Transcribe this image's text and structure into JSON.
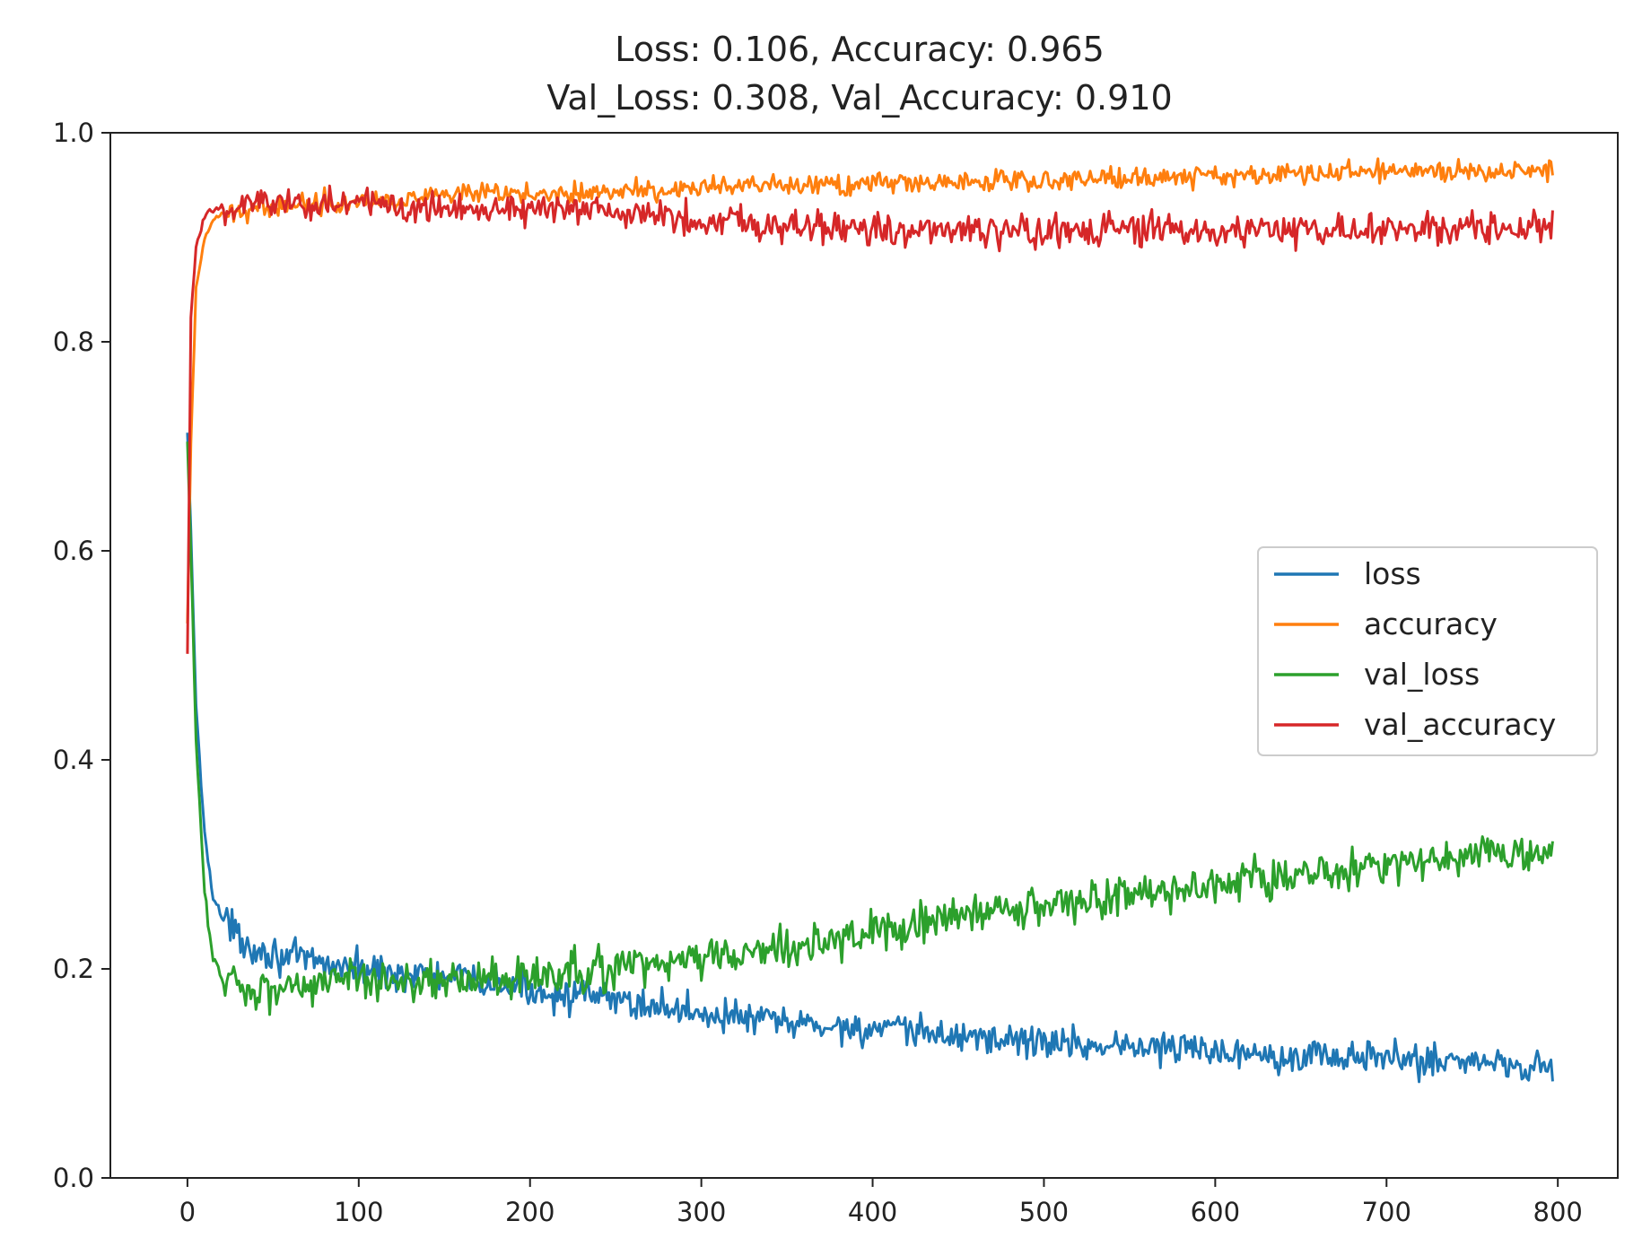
{
  "chart_data": {
    "type": "line",
    "title_lines": [
      "Loss: 0.106, Accuracy: 0.965",
      "Val_Loss: 0.308, Val_Accuracy: 0.910"
    ],
    "xlabel": "",
    "ylabel": "",
    "xlim": [
      -45,
      835
    ],
    "ylim": [
      0.0,
      1.0
    ],
    "x_ticks": [
      0,
      100,
      200,
      300,
      400,
      500,
      600,
      700,
      800
    ],
    "x_tick_labels": [
      "0",
      "100",
      "200",
      "300",
      "400",
      "500",
      "600",
      "700",
      "800"
    ],
    "y_ticks": [
      0.0,
      0.2,
      0.4,
      0.6,
      0.8,
      1.0
    ],
    "y_tick_labels": [
      "0.0",
      "0.2",
      "0.4",
      "0.6",
      "0.8",
      "1.0"
    ],
    "grid": false,
    "legend_position": "center-right",
    "x_points": [
      0,
      2,
      5,
      10,
      15,
      20,
      30,
      40,
      50,
      60,
      80,
      100,
      130,
      160,
      200,
      250,
      300,
      350,
      400,
      450,
      500,
      550,
      600,
      650,
      700,
      750,
      797
    ],
    "series": [
      {
        "name": "loss",
        "color": "#1f77b4",
        "values": [
          0.71,
          0.62,
          0.45,
          0.33,
          0.27,
          0.25,
          0.23,
          0.22,
          0.215,
          0.21,
          0.205,
          0.2,
          0.195,
          0.19,
          0.18,
          0.17,
          0.158,
          0.148,
          0.142,
          0.136,
          0.13,
          0.126,
          0.122,
          0.118,
          0.114,
          0.112,
          0.106
        ],
        "noise": 0.008
      },
      {
        "name": "accuracy",
        "color": "#ff7f0e",
        "values": [
          0.53,
          0.7,
          0.85,
          0.9,
          0.915,
          0.92,
          0.925,
          0.928,
          0.93,
          0.932,
          0.934,
          0.935,
          0.937,
          0.94,
          0.942,
          0.944,
          0.947,
          0.949,
          0.951,
          0.953,
          0.955,
          0.957,
          0.959,
          0.961,
          0.963,
          0.964,
          0.965
        ],
        "noise": 0.005
      },
      {
        "name": "val_loss",
        "color": "#2ca02c",
        "values": [
          0.7,
          0.6,
          0.42,
          0.27,
          0.21,
          0.195,
          0.185,
          0.18,
          0.18,
          0.185,
          0.188,
          0.19,
          0.19,
          0.19,
          0.19,
          0.2,
          0.21,
          0.22,
          0.235,
          0.25,
          0.26,
          0.27,
          0.28,
          0.29,
          0.3,
          0.31,
          0.308
        ],
        "noise": 0.01
      },
      {
        "name": "val_accuracy",
        "color": "#d62728",
        "values": [
          0.5,
          0.82,
          0.89,
          0.92,
          0.925,
          0.928,
          0.93,
          0.935,
          0.935,
          0.933,
          0.932,
          0.931,
          0.93,
          0.93,
          0.928,
          0.922,
          0.918,
          0.912,
          0.908,
          0.905,
          0.905,
          0.906,
          0.906,
          0.907,
          0.907,
          0.908,
          0.91
        ],
        "noise": 0.008
      }
    ]
  }
}
